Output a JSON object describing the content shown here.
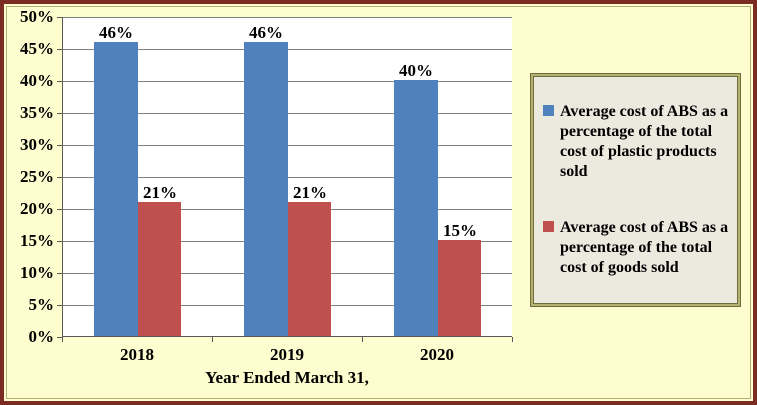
{
  "chart_data": {
    "type": "bar",
    "categories": [
      "2018",
      "2019",
      "2020"
    ],
    "series": [
      {
        "name": "Average cost of ABS as a percentage of the total cost of plastic products sold",
        "values": [
          46,
          46,
          40
        ],
        "color": "#4F81BD"
      },
      {
        "name": "Average cost of ABS as a percentage of the total cost of goods sold",
        "values": [
          21,
          21,
          15
        ],
        "color": "#C0504D"
      }
    ],
    "value_labels": [
      [
        "46%",
        "46%",
        "40%"
      ],
      [
        "21%",
        "21%",
        "15%"
      ]
    ],
    "title": "",
    "xlabel": "Year Ended March 31,",
    "ylabel": "",
    "ylim": [
      0,
      50
    ],
    "ytick_step": 5,
    "ytick_labels": [
      "0%",
      "5%",
      "10%",
      "15%",
      "20%",
      "25%",
      "30%",
      "35%",
      "40%",
      "45%",
      "50%"
    ],
    "grid": true,
    "legend_position": "right"
  },
  "colors": {
    "frame_border": "#7B2B23",
    "frame_inner_line": "#B2AE74",
    "page_background": "#FDFDCF",
    "plot_background": "#FFFFFF",
    "gridline": "#808080",
    "axis": "#595959",
    "legend_background": "#ECE9DF",
    "legend_border": "#6E6E3B",
    "text": "#000000"
  }
}
